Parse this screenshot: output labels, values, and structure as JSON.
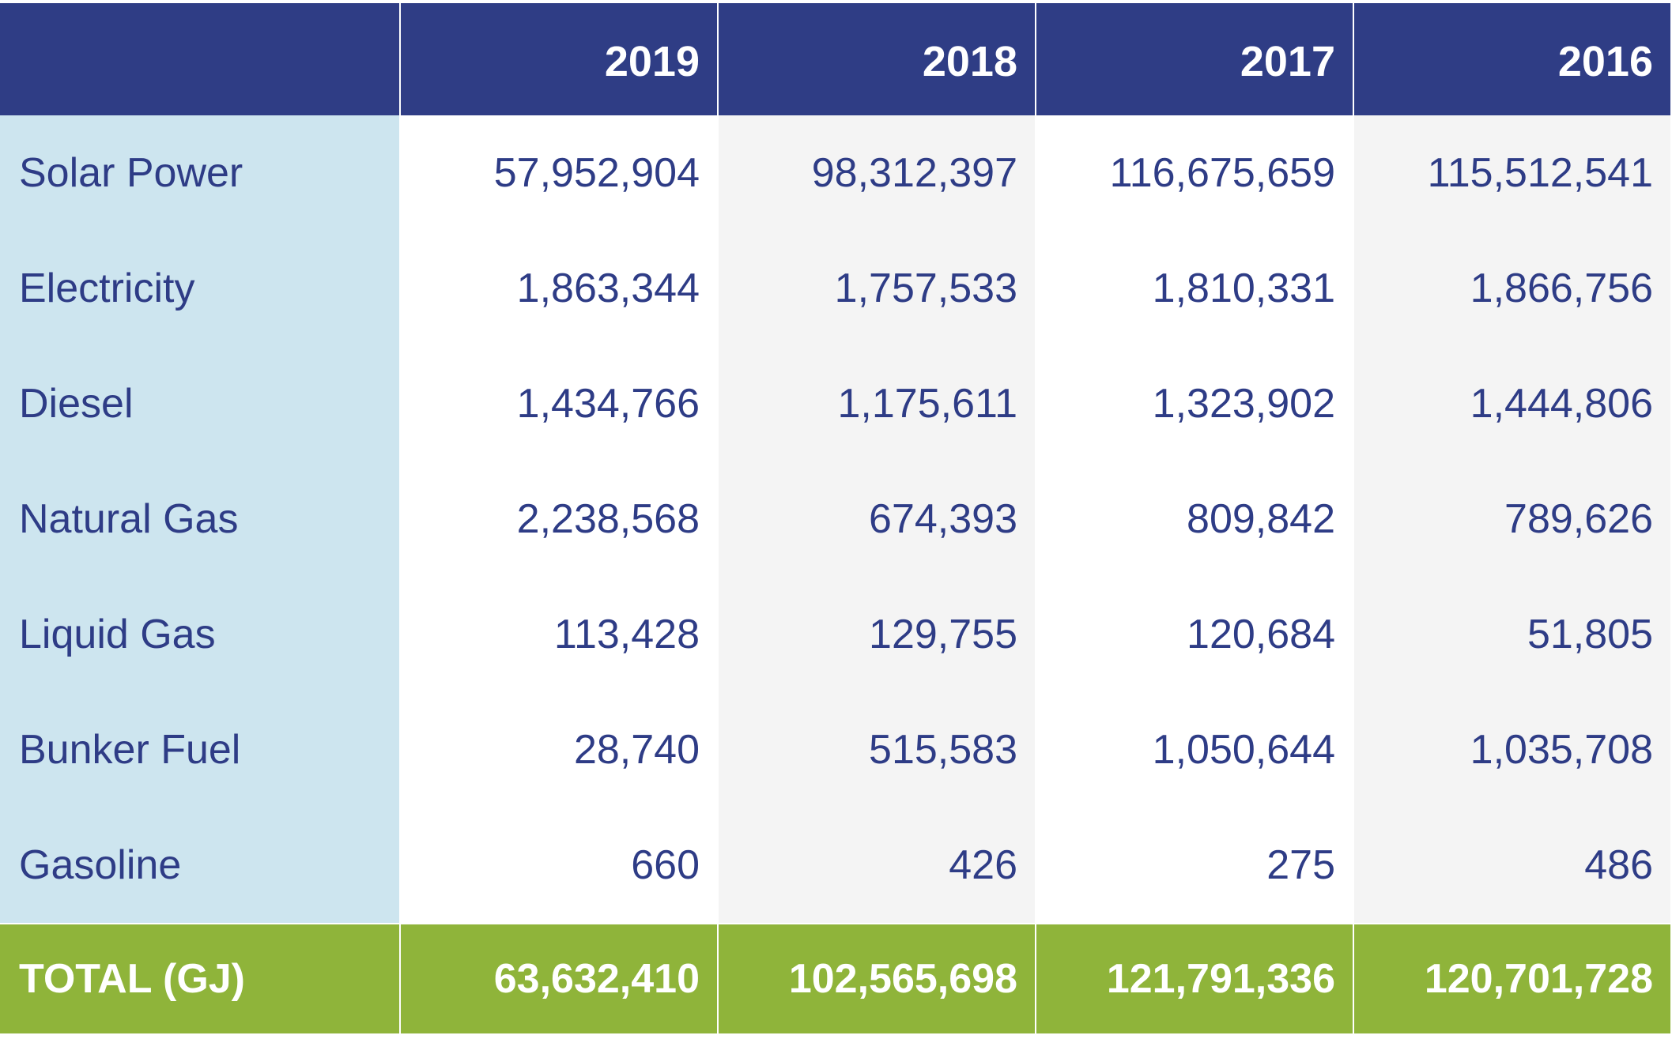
{
  "chart_data": {
    "type": "table",
    "columns": [
      "",
      "2019",
      "2018",
      "2017",
      "2016"
    ],
    "rows": [
      {
        "label": "Solar Power",
        "values": [
          "57,952,904",
          "98,312,397",
          "116,675,659",
          "115,512,541"
        ]
      },
      {
        "label": "Electricity",
        "values": [
          "1,863,344",
          "1,757,533",
          "1,810,331",
          "1,866,756"
        ]
      },
      {
        "label": "Diesel",
        "values": [
          "1,434,766",
          "1,175,611",
          "1,323,902",
          "1,444,806"
        ]
      },
      {
        "label": "Natural Gas",
        "values": [
          "2,238,568",
          "674,393",
          "809,842",
          "789,626"
        ]
      },
      {
        "label": "Liquid Gas",
        "values": [
          "113,428",
          "129,755",
          "120,684",
          "51,805"
        ]
      },
      {
        "label": "Bunker Fuel",
        "values": [
          "28,740",
          "515,583",
          "1,050,644",
          "1,035,708"
        ]
      },
      {
        "label": "Gasoline",
        "values": [
          "660",
          "426",
          "275",
          "486"
        ]
      }
    ],
    "total": {
      "label": "TOTAL (GJ)",
      "values": [
        "63,632,410",
        "102,565,698",
        "121,791,336",
        "120,701,728"
      ]
    }
  },
  "colors": {
    "header_bg": "#2f3d85",
    "label_column_bg": "#cde5ef",
    "alt_column_bg": "#f4f4f4",
    "total_row_bg": "#8fb43a",
    "text": "#2e3c86"
  }
}
